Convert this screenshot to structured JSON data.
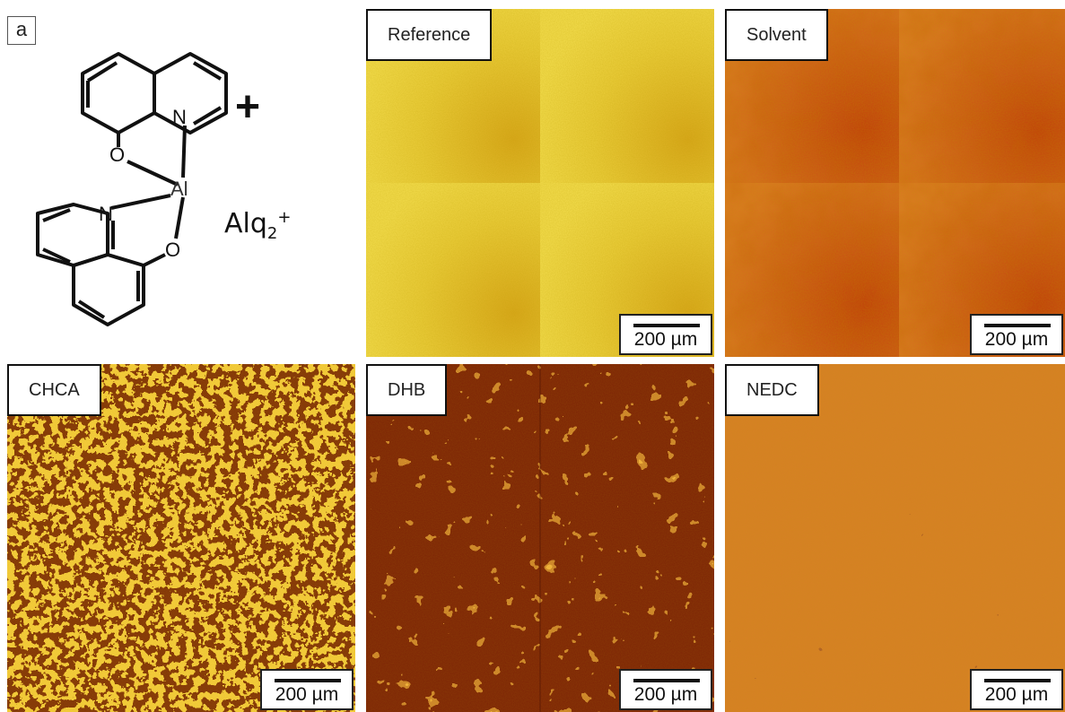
{
  "panel_letter": "a",
  "molecule": {
    "atoms": {
      "n_top": "N",
      "n_bottom": "N",
      "o_top": "O",
      "o_bottom": "O",
      "al": "Al"
    },
    "plus": "+",
    "ion_base": "Alq",
    "ion_sub": "2",
    "ion_sup": "+"
  },
  "tiles": [
    {
      "label": "Reference",
      "scale": "200 µm"
    },
    {
      "label": "Solvent",
      "scale": "200 µm"
    },
    {
      "label": "CHCA",
      "scale": "200 µm"
    },
    {
      "label": "DHB",
      "scale": "200 µm"
    },
    {
      "label": "NEDC",
      "scale": "200 µm"
    }
  ]
}
